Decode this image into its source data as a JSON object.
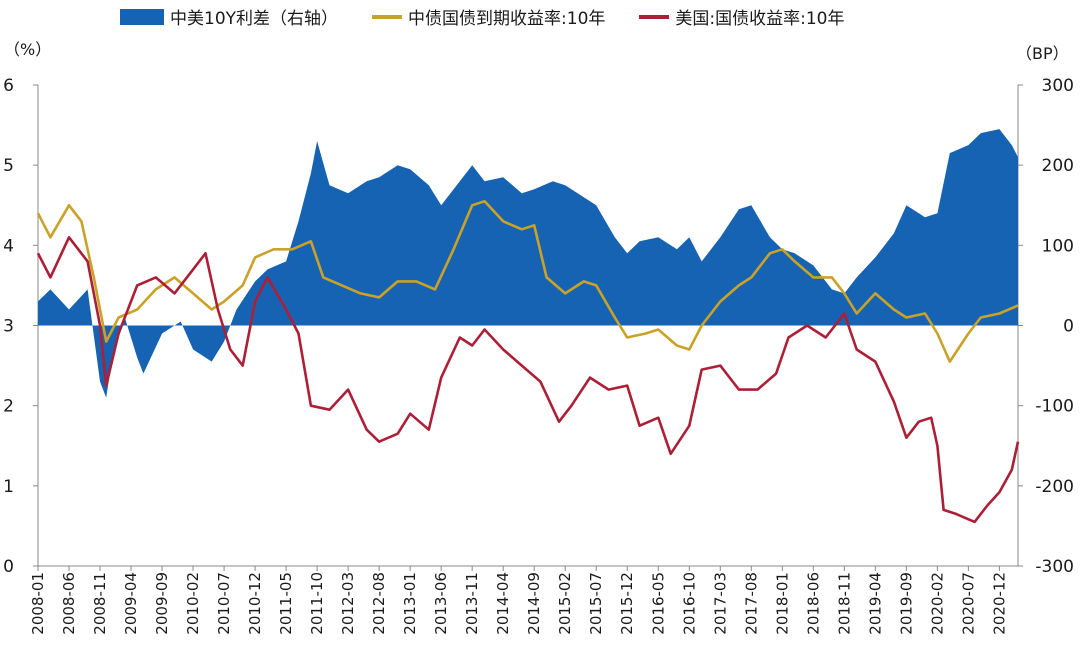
{
  "legend": {
    "spread": "中美10Y利差（右轴）",
    "china": "中债国债到期收益率:10年",
    "us": "美国:国债收益率:10年"
  },
  "units": {
    "left": "（%）",
    "right": "（BP）"
  },
  "colors": {
    "spread": "#1763b3",
    "china": "#c9a227",
    "us": "#ad1f36"
  },
  "chart_data": {
    "type": "area",
    "x_ticks": [
      "2008-01",
      "2008-06",
      "2008-11",
      "2009-04",
      "2009-09",
      "2010-02",
      "2010-07",
      "2010-12",
      "2011-05",
      "2011-10",
      "2012-03",
      "2012-08",
      "2013-01",
      "2013-06",
      "2013-11",
      "2014-04",
      "2014-09",
      "2015-02",
      "2015-07",
      "2015-12",
      "2016-05",
      "2016-10",
      "2017-03",
      "2017-08",
      "2018-01",
      "2018-06",
      "2018-11",
      "2019-04",
      "2019-09",
      "2020-02",
      "2020-07",
      "2020-12"
    ],
    "x_range": [
      "2008-01",
      "2021-03"
    ],
    "y_left": {
      "label": "%",
      "range": [
        0,
        6
      ],
      "ticks": [
        "0",
        "1",
        "2",
        "3",
        "4",
        "5",
        "6"
      ]
    },
    "y_right": {
      "label": "BP",
      "range": [
        -300,
        300
      ],
      "ticks": [
        "-300",
        "-200",
        "-100",
        "0",
        "100",
        "200",
        "300"
      ]
    },
    "series": [
      {
        "name": "中美10Y利差（右轴）",
        "axis": "right",
        "style": "area",
        "points": [
          [
            "2008-01",
            30
          ],
          [
            "2008-03",
            45
          ],
          [
            "2008-06",
            20
          ],
          [
            "2008-09",
            45
          ],
          [
            "2008-11",
            -70
          ],
          [
            "2008-12",
            -90
          ],
          [
            "2009-01",
            -40
          ],
          [
            "2009-03",
            10
          ],
          [
            "2009-05",
            -40
          ],
          [
            "2009-06",
            -60
          ],
          [
            "2009-09",
            -10
          ],
          [
            "2009-12",
            5
          ],
          [
            "2010-02",
            -30
          ],
          [
            "2010-05",
            -45
          ],
          [
            "2010-07",
            -20
          ],
          [
            "2010-09",
            20
          ],
          [
            "2010-12",
            55
          ],
          [
            "2011-02",
            70
          ],
          [
            "2011-05",
            80
          ],
          [
            "2011-07",
            130
          ],
          [
            "2011-09",
            190
          ],
          [
            "2011-10",
            230
          ],
          [
            "2011-12",
            175
          ],
          [
            "2012-03",
            165
          ],
          [
            "2012-06",
            180
          ],
          [
            "2012-08",
            185
          ],
          [
            "2012-11",
            200
          ],
          [
            "2013-01",
            195
          ],
          [
            "2013-04",
            175
          ],
          [
            "2013-06",
            150
          ],
          [
            "2013-09",
            180
          ],
          [
            "2013-11",
            200
          ],
          [
            "2014-01",
            180
          ],
          [
            "2014-04",
            185
          ],
          [
            "2014-07",
            165
          ],
          [
            "2014-09",
            170
          ],
          [
            "2014-12",
            180
          ],
          [
            "2015-02",
            175
          ],
          [
            "2015-05",
            160
          ],
          [
            "2015-07",
            150
          ],
          [
            "2015-10",
            110
          ],
          [
            "2015-12",
            90
          ],
          [
            "2016-02",
            105
          ],
          [
            "2016-05",
            110
          ],
          [
            "2016-08",
            95
          ],
          [
            "2016-10",
            110
          ],
          [
            "2016-12",
            80
          ],
          [
            "2017-03",
            110
          ],
          [
            "2017-06",
            145
          ],
          [
            "2017-08",
            150
          ],
          [
            "2017-11",
            110
          ],
          [
            "2018-01",
            95
          ],
          [
            "2018-03",
            90
          ],
          [
            "2018-06",
            75
          ],
          [
            "2018-09",
            45
          ],
          [
            "2018-11",
            40
          ],
          [
            "2019-01",
            60
          ],
          [
            "2019-04",
            85
          ],
          [
            "2019-07",
            115
          ],
          [
            "2019-09",
            150
          ],
          [
            "2019-12",
            135
          ],
          [
            "2020-02",
            140
          ],
          [
            "2020-04",
            215
          ],
          [
            "2020-07",
            225
          ],
          [
            "2020-09",
            240
          ],
          [
            "2020-12",
            245
          ],
          [
            "2021-02",
            225
          ],
          [
            "2021-03",
            210
          ]
        ]
      },
      {
        "name": "中债国债到期收益率:10年",
        "axis": "left",
        "style": "line",
        "points": [
          [
            "2008-01",
            4.4
          ],
          [
            "2008-03",
            4.1
          ],
          [
            "2008-06",
            4.5
          ],
          [
            "2008-08",
            4.3
          ],
          [
            "2008-10",
            3.6
          ],
          [
            "2008-12",
            2.8
          ],
          [
            "2009-02",
            3.1
          ],
          [
            "2009-05",
            3.2
          ],
          [
            "2009-08",
            3.45
          ],
          [
            "2009-11",
            3.6
          ],
          [
            "2010-02",
            3.4
          ],
          [
            "2010-05",
            3.2
          ],
          [
            "2010-07",
            3.3
          ],
          [
            "2010-10",
            3.5
          ],
          [
            "2010-12",
            3.85
          ],
          [
            "2011-03",
            3.95
          ],
          [
            "2011-06",
            3.95
          ],
          [
            "2011-09",
            4.05
          ],
          [
            "2011-11",
            3.6
          ],
          [
            "2012-02",
            3.5
          ],
          [
            "2012-05",
            3.4
          ],
          [
            "2012-08",
            3.35
          ],
          [
            "2012-11",
            3.55
          ],
          [
            "2013-02",
            3.55
          ],
          [
            "2013-05",
            3.45
          ],
          [
            "2013-08",
            3.95
          ],
          [
            "2013-11",
            4.5
          ],
          [
            "2014-01",
            4.55
          ],
          [
            "2014-04",
            4.3
          ],
          [
            "2014-07",
            4.2
          ],
          [
            "2014-09",
            4.25
          ],
          [
            "2014-11",
            3.6
          ],
          [
            "2015-02",
            3.4
          ],
          [
            "2015-05",
            3.55
          ],
          [
            "2015-07",
            3.5
          ],
          [
            "2015-10",
            3.1
          ],
          [
            "2015-12",
            2.85
          ],
          [
            "2016-03",
            2.9
          ],
          [
            "2016-05",
            2.95
          ],
          [
            "2016-08",
            2.75
          ],
          [
            "2016-10",
            2.7
          ],
          [
            "2016-12",
            3.0
          ],
          [
            "2017-03",
            3.3
          ],
          [
            "2017-06",
            3.5
          ],
          [
            "2017-08",
            3.6
          ],
          [
            "2017-11",
            3.9
          ],
          [
            "2018-01",
            3.95
          ],
          [
            "2018-03",
            3.8
          ],
          [
            "2018-06",
            3.6
          ],
          [
            "2018-09",
            3.6
          ],
          [
            "2018-11",
            3.4
          ],
          [
            "2019-01",
            3.15
          ],
          [
            "2019-04",
            3.4
          ],
          [
            "2019-07",
            3.2
          ],
          [
            "2019-09",
            3.1
          ],
          [
            "2019-12",
            3.15
          ],
          [
            "2020-02",
            2.9
          ],
          [
            "2020-04",
            2.55
          ],
          [
            "2020-07",
            2.9
          ],
          [
            "2020-09",
            3.1
          ],
          [
            "2020-12",
            3.15
          ],
          [
            "2021-03",
            3.25
          ]
        ]
      },
      {
        "name": "美国:国债收益率:10年",
        "axis": "left",
        "style": "line",
        "points": [
          [
            "2008-01",
            3.9
          ],
          [
            "2008-03",
            3.6
          ],
          [
            "2008-06",
            4.1
          ],
          [
            "2008-09",
            3.8
          ],
          [
            "2008-11",
            3.0
          ],
          [
            "2008-12",
            2.25
          ],
          [
            "2009-02",
            2.9
          ],
          [
            "2009-05",
            3.5
          ],
          [
            "2009-08",
            3.6
          ],
          [
            "2009-11",
            3.4
          ],
          [
            "2010-02",
            3.7
          ],
          [
            "2010-04",
            3.9
          ],
          [
            "2010-06",
            3.2
          ],
          [
            "2010-08",
            2.7
          ],
          [
            "2010-10",
            2.5
          ],
          [
            "2010-12",
            3.3
          ],
          [
            "2011-02",
            3.6
          ],
          [
            "2011-05",
            3.2
          ],
          [
            "2011-07",
            2.9
          ],
          [
            "2011-09",
            2.0
          ],
          [
            "2011-12",
            1.95
          ],
          [
            "2012-03",
            2.2
          ],
          [
            "2012-06",
            1.7
          ],
          [
            "2012-08",
            1.55
          ],
          [
            "2012-11",
            1.65
          ],
          [
            "2013-01",
            1.9
          ],
          [
            "2013-04",
            1.7
          ],
          [
            "2013-06",
            2.35
          ],
          [
            "2013-09",
            2.85
          ],
          [
            "2013-11",
            2.75
          ],
          [
            "2014-01",
            2.95
          ],
          [
            "2014-04",
            2.7
          ],
          [
            "2014-07",
            2.5
          ],
          [
            "2014-10",
            2.3
          ],
          [
            "2015-01",
            1.8
          ],
          [
            "2015-03",
            2.0
          ],
          [
            "2015-06",
            2.35
          ],
          [
            "2015-07",
            2.3
          ],
          [
            "2015-09",
            2.2
          ],
          [
            "2015-12",
            2.25
          ],
          [
            "2016-02",
            1.75
          ],
          [
            "2016-05",
            1.85
          ],
          [
            "2016-07",
            1.4
          ],
          [
            "2016-10",
            1.75
          ],
          [
            "2016-12",
            2.45
          ],
          [
            "2017-03",
            2.5
          ],
          [
            "2017-06",
            2.2
          ],
          [
            "2017-09",
            2.2
          ],
          [
            "2017-12",
            2.4
          ],
          [
            "2018-02",
            2.85
          ],
          [
            "2018-05",
            3.0
          ],
          [
            "2018-08",
            2.85
          ],
          [
            "2018-11",
            3.15
          ],
          [
            "2019-01",
            2.7
          ],
          [
            "2019-04",
            2.55
          ],
          [
            "2019-07",
            2.05
          ],
          [
            "2019-09",
            1.6
          ],
          [
            "2019-11",
            1.8
          ],
          [
            "2020-01",
            1.85
          ],
          [
            "2020-02",
            1.5
          ],
          [
            "2020-03",
            0.7
          ],
          [
            "2020-05",
            0.65
          ],
          [
            "2020-08",
            0.55
          ],
          [
            "2020-10",
            0.75
          ],
          [
            "2020-12",
            0.92
          ],
          [
            "2021-02",
            1.2
          ],
          [
            "2021-03",
            1.55
          ]
        ]
      }
    ]
  }
}
